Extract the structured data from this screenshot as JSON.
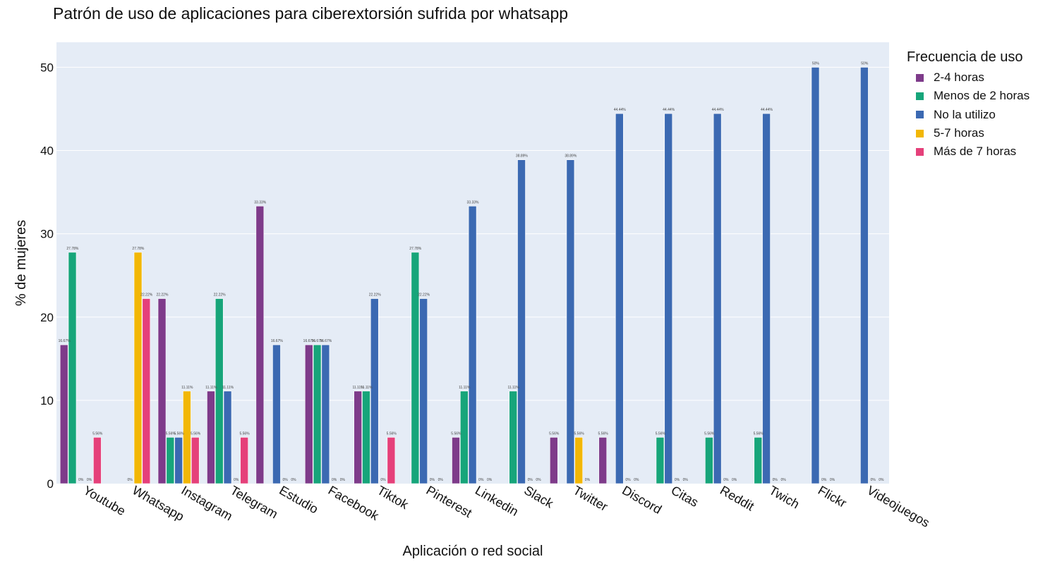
{
  "chart_data": {
    "type": "bar",
    "title": "Patrón de uso de aplicaciones para ciberextorsión sufrida por whatsapp",
    "xlabel": "Aplicación o red social",
    "ylabel": "% de mujeres",
    "ylim": [
      0,
      53
    ],
    "yticks": [
      "0",
      "10",
      "20",
      "30",
      "40",
      "50"
    ],
    "grid": true,
    "legend_title": "Frecuencia de uso",
    "legend_position": "right",
    "categories": [
      "Youtube",
      "Whatsapp",
      "Instagram",
      "Telegram",
      "Estudio",
      "Facebook",
      "Tiktok",
      "Pinterest",
      "Linkedin",
      "Slack",
      "Twitter",
      "Discord",
      "Citas",
      "Reddit",
      "Twich",
      "Flickr",
      "Videojuegos"
    ],
    "series": [
      {
        "name": "2-4 horas",
        "color": "#7e3b8a",
        "values": [
          16.67,
          null,
          22.22,
          11.11,
          33.33,
          16.67,
          11.11,
          null,
          5.56,
          null,
          5.56,
          5.56,
          null,
          null,
          null,
          null,
          null
        ],
        "labels": [
          "16.67%",
          "",
          "22.22%",
          "11.11%",
          "33.33%",
          "16.67%",
          "11.11%",
          "",
          "5.56%",
          "",
          "5.56%",
          "5.56%",
          "",
          "",
          "",
          "",
          ""
        ]
      },
      {
        "name": "Menos de 2 horas",
        "color": "#17a57a",
        "values": [
          27.78,
          null,
          5.56,
          22.22,
          null,
          16.67,
          11.11,
          27.78,
          11.11,
          11.11,
          null,
          null,
          5.56,
          5.56,
          5.56,
          null,
          null
        ],
        "labels": [
          "27.78%",
          "",
          "5.56%",
          "22.22%",
          "",
          "16.67%",
          "11.11%",
          "27.78%",
          "11.11%",
          "11.11%",
          "",
          "",
          "5.56%",
          "5.56%",
          "5.56%",
          "",
          ""
        ]
      },
      {
        "name": "No la utilizo",
        "color": "#3b69b2",
        "values": [
          0,
          0,
          5.56,
          11.11,
          16.67,
          16.67,
          22.22,
          22.22,
          33.33,
          38.89,
          38.89,
          44.44,
          44.44,
          44.44,
          44.44,
          50,
          50
        ],
        "labels": [
          "0%",
          "0%",
          "5.56%",
          "11.11%",
          "16.67%",
          "16.67%",
          "22.22%",
          "22.22%",
          "33.33%",
          "38.89%",
          "38.89%",
          "44.44%",
          "44.44%",
          "44.44%",
          "44.44%",
          "50%",
          "50%"
        ]
      },
      {
        "name": "5-7 horas",
        "color": "#f2b705",
        "values": [
          0,
          27.78,
          11.11,
          0,
          0,
          0,
          0,
          0,
          0,
          0,
          5.56,
          0,
          0,
          0,
          0,
          0,
          0
        ],
        "labels": [
          "0%",
          "27.78%",
          "11.11%",
          "0%",
          "0%",
          "0%",
          "0%",
          "0%",
          "0%",
          "0%",
          "5.56%",
          "0%",
          "0%",
          "0%",
          "0%",
          "0%",
          "0%"
        ]
      },
      {
        "name": "Más de 7 horas",
        "color": "#e5407a",
        "values": [
          5.56,
          22.22,
          5.56,
          5.56,
          0,
          0,
          5.56,
          0,
          0,
          0,
          0,
          0,
          0,
          0,
          0,
          0,
          0
        ],
        "labels": [
          "5.56%",
          "22.22%",
          "5.56%",
          "5.56%",
          "0%",
          "0%",
          "5.56%",
          "0%",
          "0%",
          "0%",
          "0%",
          "0%",
          "0%",
          "0%",
          "0%",
          "0%",
          "0%"
        ]
      }
    ]
  }
}
